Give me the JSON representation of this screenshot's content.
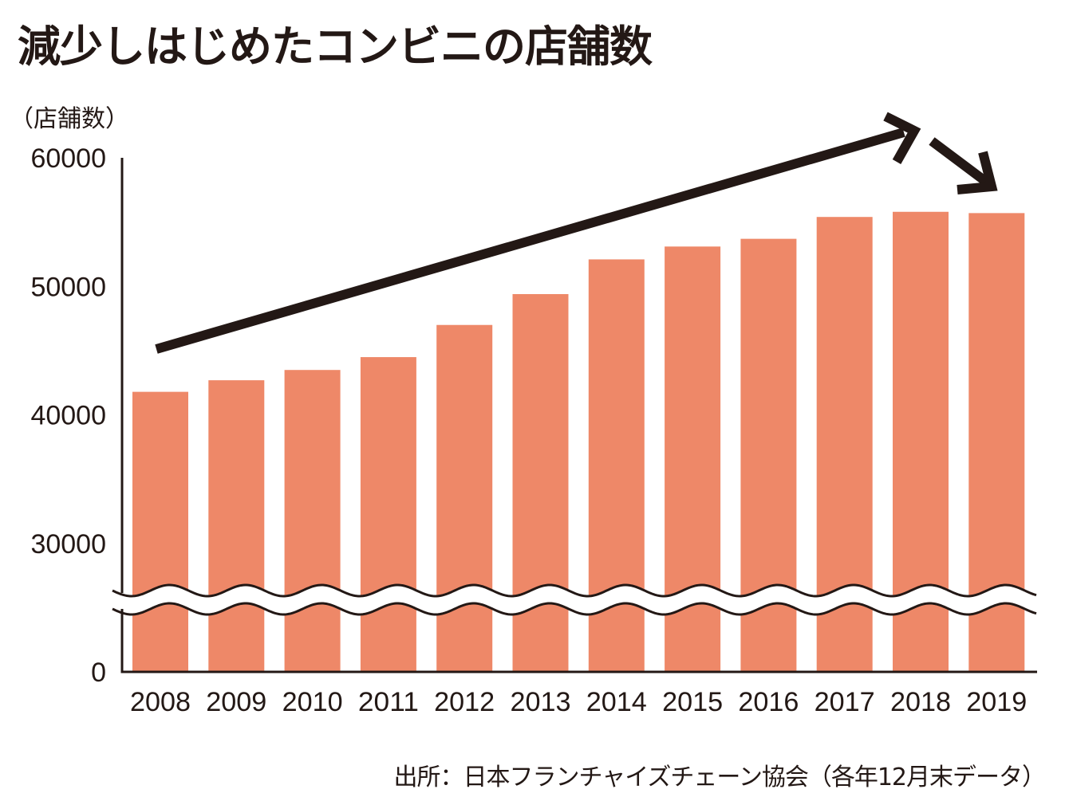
{
  "chart_data": {
    "type": "bar",
    "title": "減少しはじめたコンビニの店舗数",
    "ylabel": "（店舗数）",
    "xlabel": "",
    "categories": [
      "2008",
      "2009",
      "2010",
      "2011",
      "2012",
      "2013",
      "2014",
      "2015",
      "2016",
      "2017",
      "2018",
      "2019"
    ],
    "values": [
      41800,
      42700,
      43500,
      44500,
      47000,
      49400,
      52100,
      53100,
      53700,
      55400,
      55800,
      55700
    ],
    "yticks": [
      "60000",
      "50000",
      "40000",
      "30000",
      "0"
    ],
    "ylim": [
      0,
      60000
    ],
    "axis_break": "between 0 and 30000",
    "annotations": [
      "up-trend-arrow 2008→2018",
      "down-arrow 2018→2019"
    ],
    "grid": false,
    "legend": "none",
    "source": "出所：日本フランチャイズチェーン協会（各年12月末データ）",
    "colors": {
      "bar": "#ee8868",
      "axis": "#231815",
      "arrow": "#231815"
    }
  }
}
